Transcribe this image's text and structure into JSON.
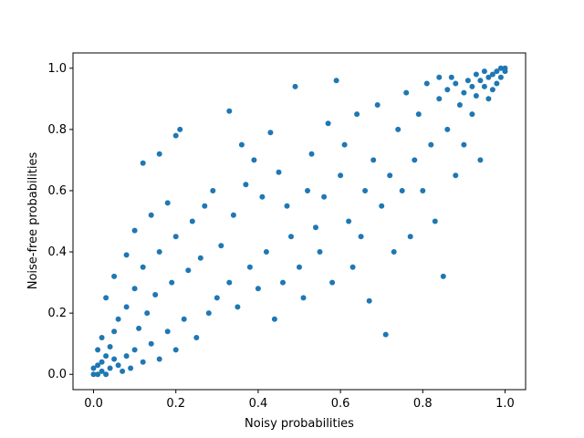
{
  "chart_data": {
    "type": "scatter",
    "xlabel": "Noisy probabilities",
    "ylabel": "Noise-free probabilities",
    "xlim": [
      -0.05,
      1.05
    ],
    "ylim": [
      -0.05,
      1.05
    ],
    "xticks": [
      "0.0",
      "0.2",
      "0.4",
      "0.6",
      "0.8",
      "1.0"
    ],
    "yticks": [
      "0.0",
      "0.2",
      "0.4",
      "0.6",
      "0.8",
      "1.0"
    ],
    "grid": false,
    "marker_color": "#1f77b4",
    "points": [
      [
        0.0,
        0.0
      ],
      [
        0.01,
        0.0
      ],
      [
        0.0,
        0.02
      ],
      [
        0.02,
        0.01
      ],
      [
        0.01,
        0.03
      ],
      [
        0.03,
        0.0
      ],
      [
        0.02,
        0.04
      ],
      [
        0.04,
        0.02
      ],
      [
        0.05,
        0.05
      ],
      [
        0.03,
        0.06
      ],
      [
        0.06,
        0.03
      ],
      [
        0.01,
        0.08
      ],
      [
        0.07,
        0.01
      ],
      [
        0.04,
        0.09
      ],
      [
        0.08,
        0.06
      ],
      [
        0.09,
        0.02
      ],
      [
        0.02,
        0.12
      ],
      [
        0.05,
        0.14
      ],
      [
        0.1,
        0.08
      ],
      [
        0.12,
        0.04
      ],
      [
        0.06,
        0.18
      ],
      [
        0.11,
        0.15
      ],
      [
        0.14,
        0.1
      ],
      [
        0.16,
        0.05
      ],
      [
        0.08,
        0.22
      ],
      [
        0.13,
        0.2
      ],
      [
        0.03,
        0.25
      ],
      [
        0.18,
        0.14
      ],
      [
        0.2,
        0.08
      ],
      [
        0.1,
        0.28
      ],
      [
        0.15,
        0.26
      ],
      [
        0.22,
        0.18
      ],
      [
        0.05,
        0.32
      ],
      [
        0.12,
        0.35
      ],
      [
        0.19,
        0.3
      ],
      [
        0.25,
        0.12
      ],
      [
        0.08,
        0.39
      ],
      [
        0.16,
        0.4
      ],
      [
        0.23,
        0.34
      ],
      [
        0.28,
        0.2
      ],
      [
        0.1,
        0.47
      ],
      [
        0.2,
        0.45
      ],
      [
        0.3,
        0.25
      ],
      [
        0.26,
        0.38
      ],
      [
        0.14,
        0.52
      ],
      [
        0.24,
        0.5
      ],
      [
        0.33,
        0.3
      ],
      [
        0.18,
        0.56
      ],
      [
        0.12,
        0.69
      ],
      [
        0.16,
        0.72
      ],
      [
        0.2,
        0.78
      ],
      [
        0.21,
        0.8
      ],
      [
        0.27,
        0.55
      ],
      [
        0.35,
        0.22
      ],
      [
        0.31,
        0.42
      ],
      [
        0.38,
        0.35
      ],
      [
        0.29,
        0.6
      ],
      [
        0.34,
        0.52
      ],
      [
        0.4,
        0.28
      ],
      [
        0.33,
        0.86
      ],
      [
        0.36,
        0.75
      ],
      [
        0.42,
        0.4
      ],
      [
        0.37,
        0.62
      ],
      [
        0.44,
        0.18
      ],
      [
        0.41,
        0.58
      ],
      [
        0.46,
        0.3
      ],
      [
        0.39,
        0.7
      ],
      [
        0.48,
        0.45
      ],
      [
        0.43,
        0.79
      ],
      [
        0.45,
        0.66
      ],
      [
        0.5,
        0.35
      ],
      [
        0.47,
        0.55
      ],
      [
        0.49,
        0.94
      ],
      [
        0.52,
        0.6
      ],
      [
        0.51,
        0.25
      ],
      [
        0.54,
        0.48
      ],
      [
        0.53,
        0.72
      ],
      [
        0.55,
        0.4
      ],
      [
        0.57,
        0.82
      ],
      [
        0.56,
        0.58
      ],
      [
        0.58,
        0.3
      ],
      [
        0.6,
        0.65
      ],
      [
        0.59,
        0.96
      ],
      [
        0.62,
        0.5
      ],
      [
        0.61,
        0.75
      ],
      [
        0.63,
        0.35
      ],
      [
        0.64,
        0.85
      ],
      [
        0.66,
        0.6
      ],
      [
        0.65,
        0.45
      ],
      [
        0.67,
        0.24
      ],
      [
        0.68,
        0.7
      ],
      [
        0.7,
        0.55
      ],
      [
        0.69,
        0.88
      ],
      [
        0.71,
        0.13
      ],
      [
        0.72,
        0.65
      ],
      [
        0.73,
        0.4
      ],
      [
        0.74,
        0.8
      ],
      [
        0.75,
        0.6
      ],
      [
        0.76,
        0.92
      ],
      [
        0.77,
        0.45
      ],
      [
        0.78,
        0.7
      ],
      [
        0.79,
        0.85
      ],
      [
        0.8,
        0.6
      ],
      [
        0.81,
        0.95
      ],
      [
        0.82,
        0.75
      ],
      [
        0.83,
        0.5
      ],
      [
        0.84,
        0.9
      ],
      [
        0.85,
        0.32
      ],
      [
        0.86,
        0.8
      ],
      [
        0.87,
        0.97
      ],
      [
        0.88,
        0.65
      ],
      [
        0.89,
        0.88
      ],
      [
        0.9,
        0.75
      ],
      [
        0.91,
        0.96
      ],
      [
        0.92,
        0.85
      ],
      [
        0.93,
        0.98
      ],
      [
        0.94,
        0.7
      ],
      [
        0.95,
        0.99
      ],
      [
        0.96,
        0.9
      ],
      [
        0.97,
        0.98
      ],
      [
        0.98,
        0.95
      ],
      [
        0.99,
        1.0
      ],
      [
        1.0,
        0.99
      ],
      [
        0.99,
        0.97
      ],
      [
        0.97,
        0.93
      ],
      [
        0.95,
        0.94
      ],
      [
        0.93,
        0.91
      ],
      [
        0.98,
        0.99
      ],
      [
        1.0,
        1.0
      ],
      [
        0.96,
        0.97
      ],
      [
        0.94,
        0.96
      ],
      [
        0.92,
        0.94
      ],
      [
        0.9,
        0.92
      ],
      [
        0.88,
        0.95
      ],
      [
        0.86,
        0.93
      ],
      [
        0.84,
        0.97
      ]
    ]
  }
}
